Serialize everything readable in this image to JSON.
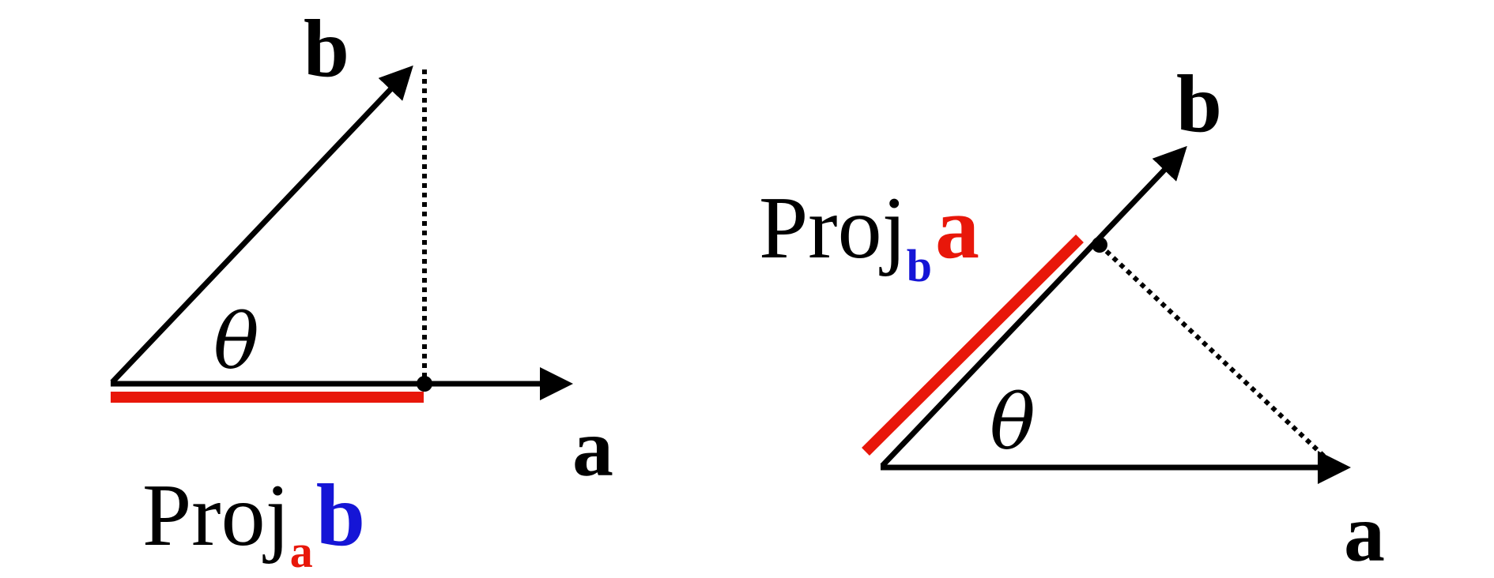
{
  "colors": {
    "ink": "#000000",
    "red": "#e8170a",
    "blue": "#1515d6"
  },
  "left_diagram": {
    "vector_b_label": "b",
    "vector_a_label": "a",
    "angle_label": "θ",
    "projection_label": {
      "word": "Proj",
      "subscript": "a",
      "vector": "b"
    }
  },
  "right_diagram": {
    "vector_b_label": "b",
    "vector_a_label": "a",
    "angle_label": "θ",
    "projection_label": {
      "word": "Proj",
      "subscript": "b",
      "vector": "a"
    }
  }
}
